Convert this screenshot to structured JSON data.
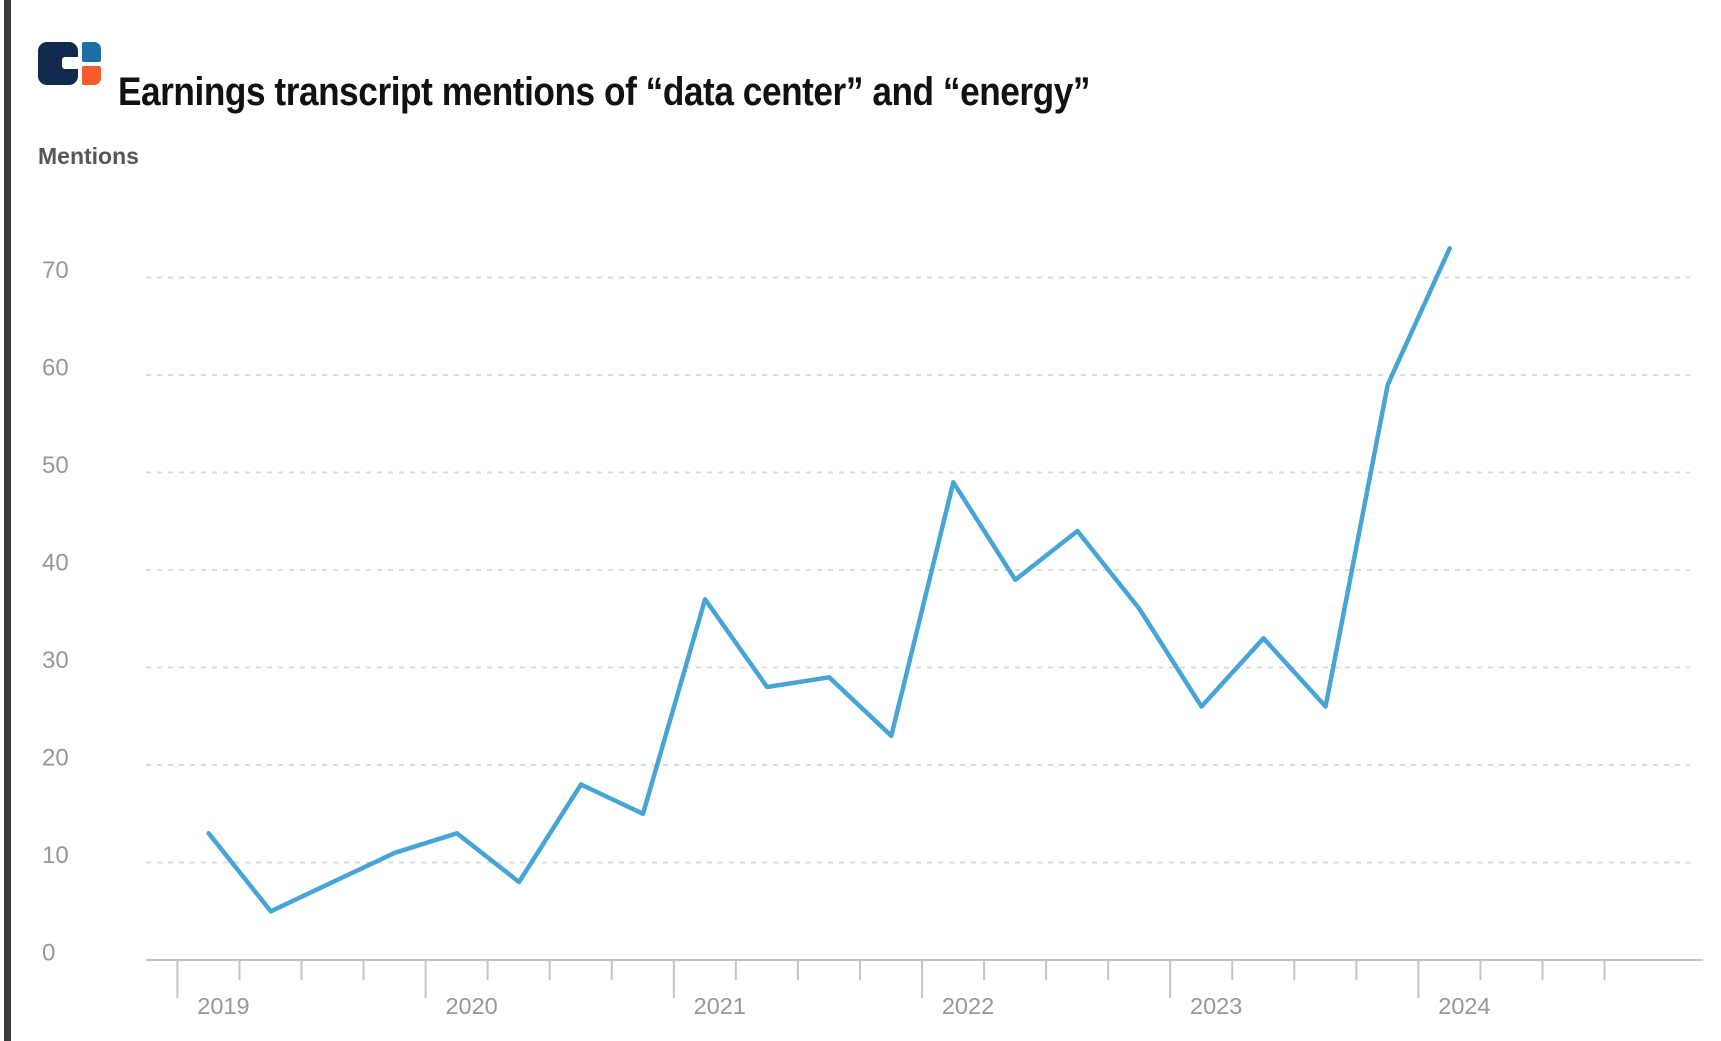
{
  "header": {
    "logo": "cb-insights-logo-mark",
    "title": "Earnings transcript mentions of “data center” and “energy”"
  },
  "chart_data": {
    "type": "line",
    "title": "Earnings transcript mentions of “data center” and “energy”",
    "ylabel": "Mentions",
    "xlabel": "",
    "x": [
      "2019-Q1",
      "2019-Q2",
      "2019-Q3",
      "2019-Q4",
      "2020-Q1",
      "2020-Q2",
      "2020-Q3",
      "2020-Q4",
      "2021-Q1",
      "2021-Q2",
      "2021-Q3",
      "2021-Q4",
      "2022-Q1",
      "2022-Q2",
      "2022-Q3",
      "2022-Q4",
      "2023-Q1",
      "2023-Q2",
      "2023-Q3",
      "2023-Q4",
      "2024-Q1"
    ],
    "values": [
      13,
      5,
      8,
      11,
      13,
      8,
      18,
      15,
      37,
      28,
      29,
      23,
      49,
      39,
      44,
      36,
      26,
      33,
      26,
      59,
      73
    ],
    "year_labels": [
      "2019",
      "2020",
      "2021",
      "2022",
      "2023",
      "2024"
    ],
    "yticks": [
      0,
      10,
      20,
      30,
      40,
      50,
      60,
      70
    ],
    "ylim": [
      0,
      75
    ],
    "grid": "horizontal-dashed",
    "legend": "none"
  },
  "colors": {
    "line": "#46a5d5",
    "grid": "#dcdcdc",
    "axis": "#c5c5c5",
    "axis_label": "#979797",
    "title_text": "#111111",
    "ylabel_text": "#575757",
    "logo_navy": "#112a4d",
    "logo_blue": "#1e6ea6",
    "logo_orange": "#f65c2e",
    "edge_bar": "#3a3a3a"
  }
}
